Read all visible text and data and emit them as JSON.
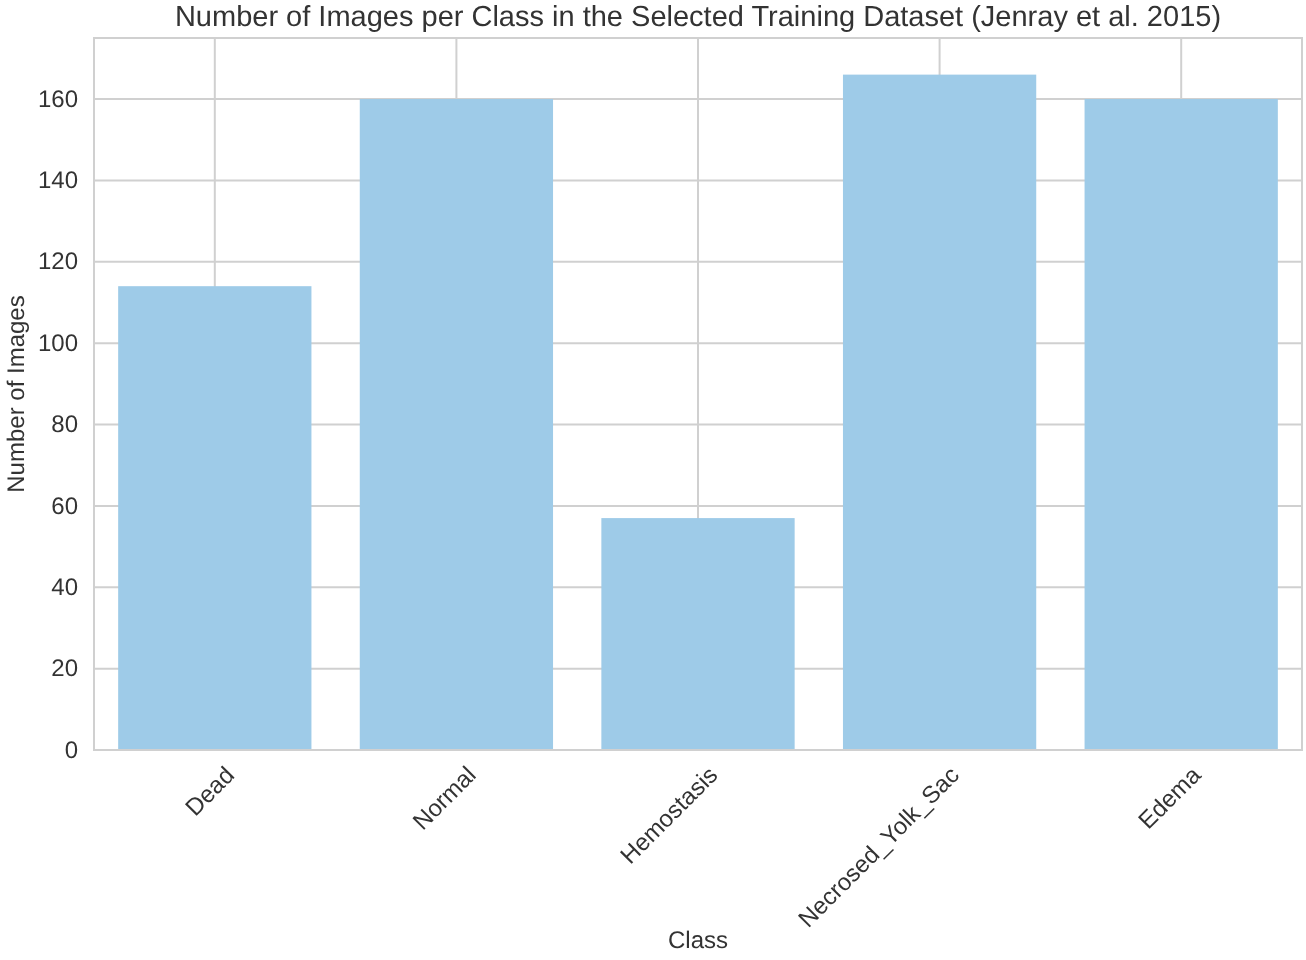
{
  "chart_data": {
    "type": "bar",
    "title": "Number of Images per Class in the Selected Training Dataset (Jenray et al. 2015)",
    "xlabel": "Class",
    "ylabel": "Number of Images",
    "categories": [
      "Dead",
      "Normal",
      "Hemostasis",
      "Necrosed_Yolk_Sac",
      "Edema"
    ],
    "values": [
      114,
      160,
      57,
      166,
      160
    ],
    "color": "#9ecbe8",
    "ylim": [
      0,
      175
    ],
    "yticks": [
      0,
      20,
      40,
      60,
      80,
      100,
      120,
      140,
      160
    ],
    "grid": true
  }
}
